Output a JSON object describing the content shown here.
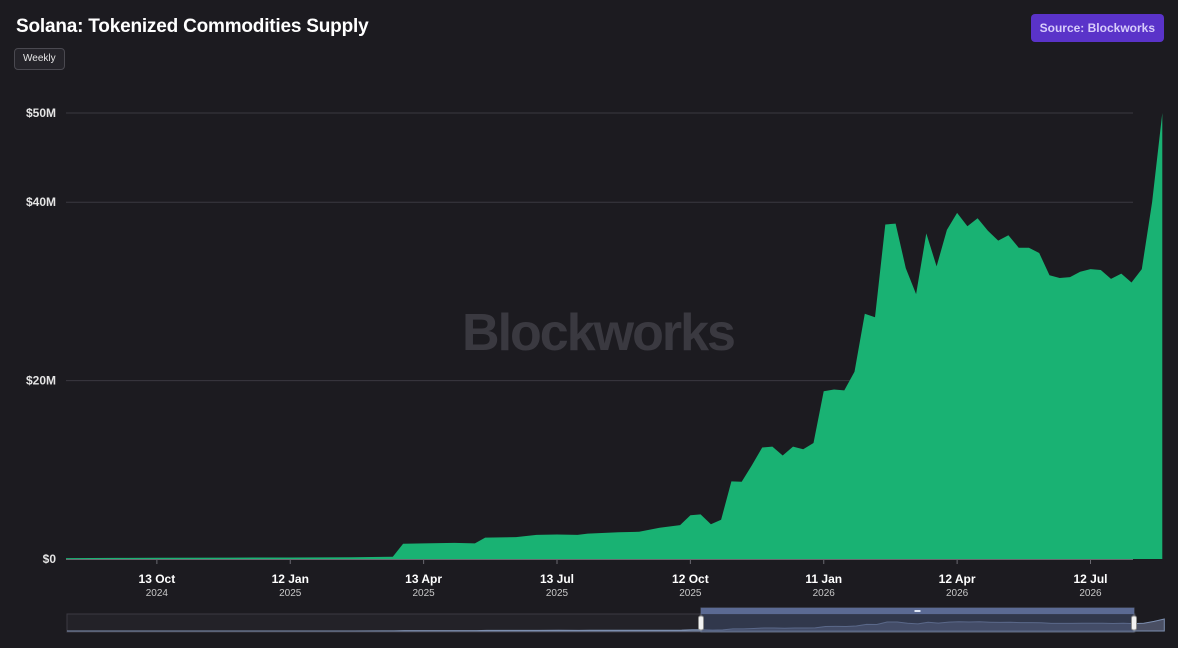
{
  "header": {
    "title": "Solana: Tokenized Commodities Supply",
    "interval_label": "Weekly",
    "source_label": "Source: Blockworks"
  },
  "watermark": "Blockworks",
  "colors": {
    "background": "#1c1b20",
    "area": "#19b273",
    "grid": "#3a3940",
    "source_button": "#5a33c9",
    "navigator_window": "#3e4a6b"
  },
  "chart_data": {
    "type": "area",
    "title": "Solana: Tokenized Commodities Supply",
    "xlabel": "",
    "ylabel": "",
    "ylim": [
      0,
      50000000
    ],
    "xlim": [
      "2024-08-12",
      "2026-08-10"
    ],
    "grid": true,
    "y_ticks": [
      {
        "value": 0,
        "label": "$0"
      },
      {
        "value": 20000000,
        "label": "$20M"
      },
      {
        "value": 40000000,
        "label": "$40M"
      },
      {
        "value": 50000000,
        "label": "$50M"
      }
    ],
    "x_ticks": [
      {
        "date": "2024-10-13",
        "label": "13 Oct",
        "sublabel": "2024"
      },
      {
        "date": "2025-01-12",
        "label": "12 Jan",
        "sublabel": "2025"
      },
      {
        "date": "2025-04-13",
        "label": "13 Apr",
        "sublabel": "2025"
      },
      {
        "date": "2025-07-13",
        "label": "13 Jul",
        "sublabel": "2025"
      },
      {
        "date": "2025-10-12",
        "label": "12 Oct",
        "sublabel": "2025"
      },
      {
        "date": "2026-01-11",
        "label": "11 Jan",
        "sublabel": "2026"
      },
      {
        "date": "2026-04-12",
        "label": "12 Apr",
        "sublabel": "2026"
      },
      {
        "date": "2026-07-12",
        "label": "12 Jul",
        "sublabel": "2026"
      }
    ],
    "series": [
      {
        "points": [
          [
            "2024-08-12",
            100000
          ],
          [
            "2024-09-15",
            120000
          ],
          [
            "2024-10-13",
            150000
          ],
          [
            "2024-12-01",
            160000
          ],
          [
            "2025-01-12",
            170000
          ],
          [
            "2025-02-23",
            200000
          ],
          [
            "2025-03-23",
            250000
          ],
          [
            "2025-03-30",
            1700000
          ],
          [
            "2025-04-13",
            1750000
          ],
          [
            "2025-05-04",
            1800000
          ],
          [
            "2025-05-18",
            1750000
          ],
          [
            "2025-05-25",
            2400000
          ],
          [
            "2025-06-15",
            2450000
          ],
          [
            "2025-06-29",
            2700000
          ],
          [
            "2025-07-13",
            2750000
          ],
          [
            "2025-07-27",
            2700000
          ],
          [
            "2025-08-03",
            2850000
          ],
          [
            "2025-08-24",
            3000000
          ],
          [
            "2025-09-07",
            3050000
          ],
          [
            "2025-09-21",
            3500000
          ],
          [
            "2025-10-05",
            3800000
          ],
          [
            "2025-10-12",
            4900000
          ],
          [
            "2025-10-19",
            5000000
          ],
          [
            "2025-10-26",
            3900000
          ],
          [
            "2025-11-02",
            4400000
          ],
          [
            "2025-11-09",
            8700000
          ],
          [
            "2025-11-16",
            8650000
          ],
          [
            "2025-11-23",
            10500000
          ],
          [
            "2025-11-30",
            12500000
          ],
          [
            "2025-12-07",
            12600000
          ],
          [
            "2025-12-14",
            11600000
          ],
          [
            "2025-12-21",
            12600000
          ],
          [
            "2025-12-28",
            12300000
          ],
          [
            "2026-01-04",
            13000000
          ],
          [
            "2026-01-11",
            18800000
          ],
          [
            "2026-01-18",
            19000000
          ],
          [
            "2026-01-25",
            18900000
          ],
          [
            "2026-02-01",
            21000000
          ],
          [
            "2026-02-08",
            27500000
          ],
          [
            "2026-02-15",
            27100000
          ],
          [
            "2026-02-22",
            37500000
          ],
          [
            "2026-03-01",
            37600000
          ],
          [
            "2026-03-08",
            32600000
          ],
          [
            "2026-03-15",
            29700000
          ],
          [
            "2026-03-22",
            36500000
          ],
          [
            "2026-03-29",
            32800000
          ],
          [
            "2026-04-05",
            36900000
          ],
          [
            "2026-04-12",
            38800000
          ],
          [
            "2026-04-19",
            37300000
          ],
          [
            "2026-04-26",
            38200000
          ],
          [
            "2026-05-03",
            36800000
          ],
          [
            "2026-05-10",
            35700000
          ],
          [
            "2026-05-17",
            36300000
          ],
          [
            "2026-05-24",
            34900000
          ],
          [
            "2026-05-31",
            34900000
          ],
          [
            "2026-06-07",
            34300000
          ],
          [
            "2026-06-14",
            31800000
          ],
          [
            "2026-06-21",
            31500000
          ],
          [
            "2026-06-28",
            31600000
          ],
          [
            "2026-07-05",
            32200000
          ],
          [
            "2026-07-12",
            32500000
          ],
          [
            "2026-07-19",
            32400000
          ],
          [
            "2026-07-26",
            31400000
          ],
          [
            "2026-08-02",
            32000000
          ],
          [
            "2026-08-09",
            31000000
          ],
          [
            "2026-08-16",
            32500000
          ],
          [
            "2026-08-23",
            40000000
          ],
          [
            "2026-08-30",
            50000000
          ]
        ]
      }
    ]
  }
}
